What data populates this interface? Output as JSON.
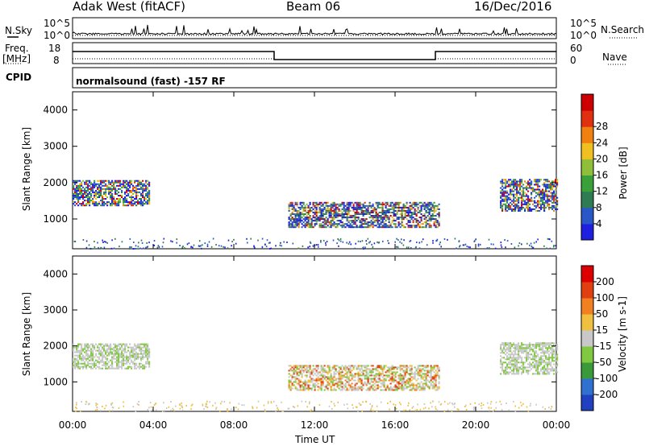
{
  "header": {
    "title_left": "Adak West (fitACF)",
    "title_center": "Beam 06",
    "title_right": "16/Dec/2016"
  },
  "top_panels": {
    "nsky_label": "N.Sky",
    "nsky_tick_top": "10^5",
    "nsky_tick_bottom": "10^0",
    "nsearch_label": "N.Search",
    "nsearch_tick_top": "10^5",
    "nsearch_tick_bottom": "10^0",
    "freq_label_1": "Freq.",
    "freq_label_2": "[MHz]",
    "freq_tick_top": "18",
    "freq_tick_bottom": "8",
    "nave_label": "Nave",
    "nave_tick_top": "60",
    "nave_tick_bottom": "0",
    "cpid_label": "CPID",
    "cpid_text": "normalsound (fast) -157 RF"
  },
  "chart_data": [
    {
      "type": "heatmap",
      "name": "power",
      "ylabel": "Slant Range [km]",
      "yticks": [
        "1000",
        "2000",
        "3000",
        "4000"
      ],
      "ylim": [
        180,
        4500
      ],
      "xlim_hours": [
        0,
        24
      ],
      "colorbar_label": "Power [dB]",
      "colorbar_ticks": [
        "4",
        "8",
        "12",
        "16",
        "20",
        "24",
        "28"
      ],
      "colorbar_colors": [
        "#1f1fe0",
        "#2a57c8",
        "#2f7c52",
        "#3aa03a",
        "#8fbf3a",
        "#f0c020",
        "#f08010",
        "#e03010",
        "#cc0000"
      ],
      "echo_regions": [
        {
          "t0": 0.0,
          "t1": 3.8,
          "r0": 1350,
          "r1": 2050
        },
        {
          "t0": 10.7,
          "t1": 18.2,
          "r0": 750,
          "r1": 1450
        },
        {
          "t0": 21.2,
          "t1": 24.0,
          "r0": 1200,
          "r1": 2100
        }
      ]
    },
    {
      "type": "heatmap",
      "name": "velocity",
      "ylabel": "Slant Range [km]",
      "yticks": [
        "1000",
        "2000",
        "3000",
        "4000"
      ],
      "ylim": [
        180,
        4500
      ],
      "xlim_hours": [
        0,
        24
      ],
      "xlabel": "Time UT",
      "xticks": [
        "00:00",
        "04:00",
        "08:00",
        "12:00",
        "16:00",
        "20:00",
        "00:00"
      ],
      "colorbar_label": "Velocity [m s-1]",
      "colorbar_ticks": [
        "200",
        "100",
        "50",
        "15",
        "-15",
        "-50",
        "-100",
        "-200"
      ],
      "colorbar_colors": [
        "#2040c0",
        "#3070d0",
        "#3a9a3a",
        "#80c840",
        "#c8c8c8",
        "#f0c040",
        "#f08020",
        "#e04010",
        "#dd0000"
      ],
      "echo_regions": [
        {
          "t0": 0.0,
          "t1": 3.8,
          "r0": 1350,
          "r1": 2050
        },
        {
          "t0": 10.7,
          "t1": 18.2,
          "r0": 750,
          "r1": 1450
        },
        {
          "t0": 21.2,
          "t1": 24.0,
          "r0": 1200,
          "r1": 2100
        }
      ]
    }
  ]
}
